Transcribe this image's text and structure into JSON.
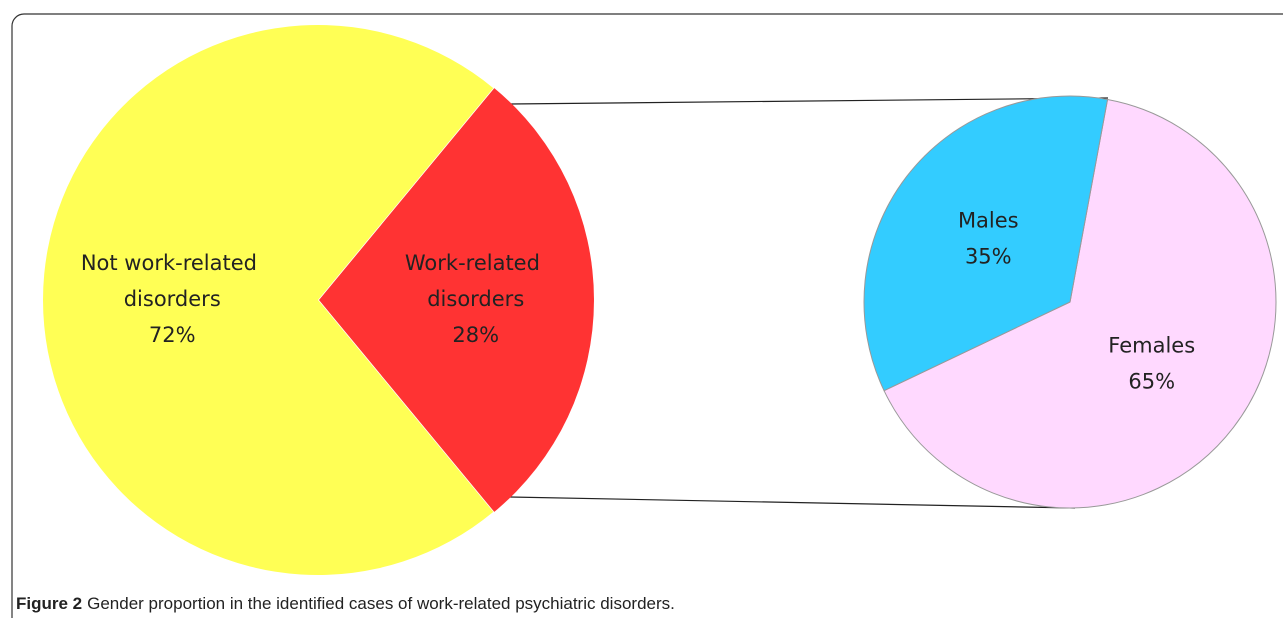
{
  "chart_data": [
    {
      "type": "pie",
      "categories": [
        "Not work-related disorders",
        "Work-related disorders"
      ],
      "values": [
        72,
        28
      ],
      "value_labels": [
        "72%",
        "28%"
      ],
      "colors": [
        "#ffff55",
        "#ff3333"
      ]
    },
    {
      "type": "pie",
      "categories": [
        "Females",
        "Males"
      ],
      "values": [
        65,
        35
      ],
      "value_labels": [
        "65%",
        "35%"
      ],
      "colors": [
        "#ffd9ff",
        "#33ccff"
      ]
    }
  ],
  "caption": {
    "label": "Figure 2",
    "text": "Gender proportion in the identified cases of work-related psychiatric disorders."
  }
}
